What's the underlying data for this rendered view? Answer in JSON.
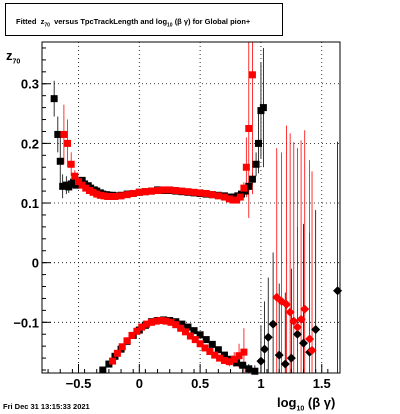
{
  "title": {
    "prefix": "Fitted",
    "z": "z",
    "z_sub": "70",
    "middle": "versus TpcTrackLength and log",
    "log_sub": "10",
    "suffix": "(β γ) for Global pion+"
  },
  "stamp": "Fri Dec 31 13:15:33 2021",
  "ylabel": {
    "main": "z",
    "sub": "70"
  },
  "xlabel": {
    "main": "log",
    "sub": "10",
    "tail": "(β γ)"
  },
  "chart_data": {
    "type": "scatter",
    "xlim": [
      -0.8,
      1.65
    ],
    "ylim": [
      -0.185,
      0.37
    ],
    "xticks": [
      -0.5,
      0,
      0.5,
      1,
      1.5
    ],
    "xtick_labels": [
      "−0.5",
      "0",
      "0.5",
      "1",
      "1.5"
    ],
    "yticks": [
      -0.1,
      0,
      0.1,
      0.2,
      0.3
    ],
    "ytick_labels": [
      "−0.1",
      "0",
      "0.1",
      "0.2",
      "0.3"
    ],
    "grid": true,
    "colors": {
      "black": "#000000",
      "red": "#ff0000"
    },
    "series": [
      {
        "color": "black",
        "marker": "square",
        "x": [
          -0.7,
          -0.67,
          -0.65,
          -0.63,
          -0.6,
          -0.58,
          -0.56,
          -0.54,
          -0.52,
          -0.5,
          -0.47,
          -0.45,
          -0.42,
          -0.4,
          -0.37,
          -0.35,
          -0.32,
          -0.3,
          -0.27,
          -0.25,
          -0.22,
          -0.2,
          -0.15,
          -0.1,
          -0.05,
          0.0,
          0.05,
          0.1,
          0.15,
          0.2,
          0.25,
          0.3,
          0.35,
          0.4,
          0.45,
          0.5,
          0.55,
          0.6,
          0.65,
          0.7,
          0.75,
          0.78,
          0.81,
          0.84,
          0.87,
          0.9,
          0.93,
          0.96,
          0.98,
          1.0,
          1.02
        ],
        "y": [
          0.275,
          0.215,
          0.17,
          0.128,
          0.13,
          0.127,
          0.132,
          0.135,
          0.13,
          0.136,
          0.138,
          0.132,
          0.129,
          0.125,
          0.122,
          0.12,
          0.117,
          0.115,
          0.114,
          0.113,
          0.113,
          0.112,
          0.113,
          0.115,
          0.116,
          0.118,
          0.119,
          0.12,
          0.122,
          0.121,
          0.121,
          0.12,
          0.119,
          0.118,
          0.117,
          0.116,
          0.115,
          0.114,
          0.113,
          0.112,
          0.11,
          0.11,
          0.112,
          0.115,
          0.12,
          0.128,
          0.14,
          0.165,
          0.2,
          0.255,
          0.26
        ],
        "err": [
          0.03,
          0.03,
          0.04,
          0.02,
          0.015,
          0.01,
          0.008,
          0.006,
          0.005,
          0.004,
          0.003,
          0.003,
          0.003,
          0.002,
          0.002,
          0.002,
          0.002,
          0.002,
          0.002,
          0.002,
          0.002,
          0.002,
          0.002,
          0.002,
          0.002,
          0.002,
          0.002,
          0.002,
          0.002,
          0.002,
          0.002,
          0.002,
          0.002,
          0.002,
          0.002,
          0.002,
          0.002,
          0.002,
          0.002,
          0.002,
          0.003,
          0.003,
          0.004,
          0.005,
          0.006,
          0.008,
          0.01,
          0.02,
          0.05,
          0.08,
          0.1
        ]
      },
      {
        "color": "black",
        "marker": "square",
        "x": [
          -0.3,
          -0.25,
          -0.2,
          -0.15,
          -0.1,
          -0.05,
          0.0,
          0.05,
          0.1,
          0.15,
          0.2,
          0.25,
          0.3,
          0.35,
          0.4,
          0.45,
          0.5,
          0.55,
          0.6,
          0.65,
          0.7,
          0.75,
          0.8,
          0.85,
          0.9,
          0.95
        ],
        "y": [
          -0.18,
          -0.17,
          -0.157,
          -0.145,
          -0.132,
          -0.122,
          -0.113,
          -0.105,
          -0.099,
          -0.097,
          -0.096,
          -0.097,
          -0.099,
          -0.103,
          -0.108,
          -0.114,
          -0.121,
          -0.129,
          -0.137,
          -0.146,
          -0.155,
          -0.162,
          -0.168,
          -0.172,
          -0.178,
          -0.182
        ],
        "err": [
          0.003,
          0.003,
          0.003,
          0.003,
          0.003,
          0.003,
          0.003,
          0.003,
          0.003,
          0.003,
          0.003,
          0.003,
          0.003,
          0.003,
          0.003,
          0.003,
          0.003,
          0.003,
          0.003,
          0.003,
          0.003,
          0.004,
          0.005,
          0.006,
          0.008,
          0.01
        ]
      },
      {
        "color": "black",
        "marker": "diamond",
        "x": [
          1.0,
          1.03,
          1.06,
          1.1,
          1.15,
          1.2,
          1.25,
          1.3,
          1.35,
          1.4,
          1.45,
          1.63
        ],
        "y": [
          -0.165,
          -0.145,
          -0.125,
          -0.103,
          -0.155,
          -0.17,
          -0.16,
          -0.12,
          -0.135,
          -0.15,
          -0.112,
          -0.047
        ],
        "err": [
          0.06,
          0.08,
          0.1,
          0.12,
          0.12,
          0.12,
          0.15,
          0.18,
          0.2,
          0.2,
          0.2,
          0.25
        ]
      },
      {
        "color": "red",
        "marker": "square",
        "x": [
          -0.62,
          -0.59,
          -0.56,
          -0.53,
          -0.5,
          -0.47,
          -0.44,
          -0.41,
          -0.38,
          -0.35,
          -0.32,
          -0.29,
          -0.26,
          -0.23,
          -0.2,
          -0.15,
          -0.1,
          -0.05,
          0.0,
          0.05,
          0.1,
          0.15,
          0.2,
          0.25,
          0.3,
          0.35,
          0.4,
          0.45,
          0.5,
          0.55,
          0.6,
          0.65,
          0.7,
          0.74,
          0.77,
          0.8,
          0.83,
          0.86,
          0.88,
          0.9,
          0.93
        ],
        "y": [
          0.215,
          0.2,
          0.165,
          0.145,
          0.136,
          0.13,
          0.125,
          0.121,
          0.118,
          0.115,
          0.113,
          0.112,
          0.111,
          0.111,
          0.111,
          0.112,
          0.114,
          0.116,
          0.118,
          0.119,
          0.12,
          0.121,
          0.122,
          0.122,
          0.121,
          0.12,
          0.119,
          0.118,
          0.117,
          0.116,
          0.114,
          0.112,
          0.11,
          0.107,
          0.105,
          0.105,
          0.11,
          0.125,
          0.16,
          0.225,
          0.315
        ],
        "err": [
          0.05,
          0.04,
          0.02,
          0.01,
          0.006,
          0.004,
          0.003,
          0.003,
          0.002,
          0.002,
          0.002,
          0.002,
          0.002,
          0.002,
          0.002,
          0.002,
          0.002,
          0.002,
          0.002,
          0.002,
          0.002,
          0.002,
          0.002,
          0.002,
          0.002,
          0.002,
          0.002,
          0.002,
          0.002,
          0.002,
          0.002,
          0.002,
          0.002,
          0.003,
          0.003,
          0.004,
          0.006,
          0.01,
          0.05,
          0.15,
          0.2
        ]
      },
      {
        "color": "red",
        "marker": "square",
        "x": [
          -0.22,
          -0.18,
          -0.14,
          -0.1,
          -0.06,
          -0.02,
          0.02,
          0.06,
          0.1,
          0.14,
          0.18,
          0.22,
          0.26,
          0.3,
          0.34,
          0.38,
          0.42,
          0.46,
          0.5,
          0.54,
          0.58,
          0.62,
          0.66,
          0.7,
          0.74,
          0.78,
          0.82,
          0.86
        ],
        "y": [
          -0.165,
          -0.152,
          -0.141,
          -0.131,
          -0.122,
          -0.115,
          -0.108,
          -0.103,
          -0.1,
          -0.098,
          -0.097,
          -0.098,
          -0.1,
          -0.104,
          -0.11,
          -0.116,
          -0.123,
          -0.129,
          -0.136,
          -0.143,
          -0.149,
          -0.155,
          -0.16,
          -0.164,
          -0.166,
          -0.162,
          -0.156,
          -0.15
        ],
        "err": [
          0.003,
          0.003,
          0.003,
          0.003,
          0.003,
          0.003,
          0.003,
          0.003,
          0.003,
          0.003,
          0.003,
          0.003,
          0.003,
          0.003,
          0.003,
          0.003,
          0.003,
          0.003,
          0.003,
          0.003,
          0.003,
          0.004,
          0.005,
          0.006,
          0.008,
          0.012,
          0.02,
          0.04
        ]
      },
      {
        "color": "red",
        "marker": "diamond",
        "x": [
          1.13,
          1.17,
          1.21,
          1.24,
          1.27,
          1.3,
          1.33,
          1.36,
          1.4,
          1.42
        ],
        "y": [
          -0.058,
          -0.065,
          -0.07,
          -0.083,
          -0.098,
          -0.108,
          -0.095,
          -0.078,
          -0.128,
          -0.147
        ],
        "err": [
          0.25,
          0.25,
          0.3,
          0.3,
          0.3,
          0.3,
          0.3,
          0.3,
          0.3,
          0.3
        ]
      }
    ]
  }
}
